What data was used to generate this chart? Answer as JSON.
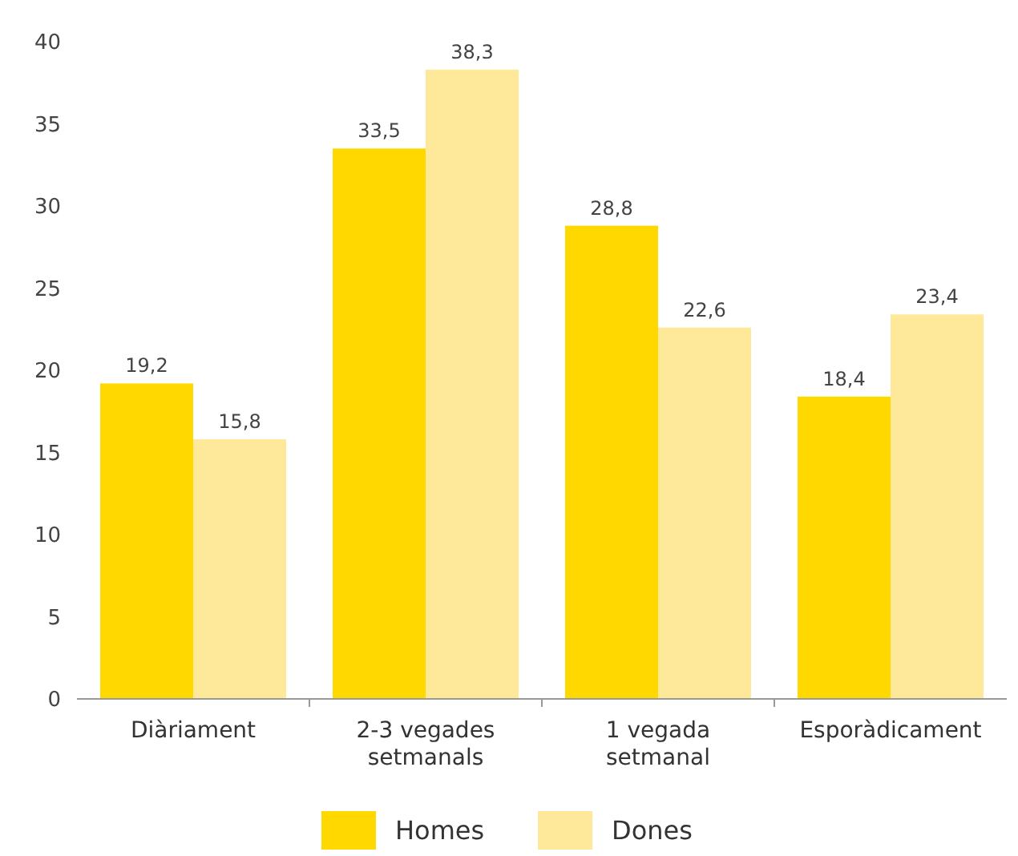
{
  "chart_data": {
    "type": "bar",
    "categories": [
      "Diàriament",
      "2-3 vegades setmanals",
      "1 vegada setmanal",
      "Esporàdicament"
    ],
    "series": [
      {
        "name": "Homes",
        "color": "#ffd800",
        "values": [
          19.2,
          33.5,
          28.8,
          18.4
        ],
        "value_labels": [
          "19,2",
          "33,5",
          "28,8",
          "18,4"
        ]
      },
      {
        "name": "Dones",
        "color": "#fde999",
        "values": [
          15.8,
          38.3,
          22.6,
          23.4
        ],
        "value_labels": [
          "15,8",
          "38,3",
          "22,6",
          "23,4"
        ]
      }
    ],
    "ylim": [
      0,
      40
    ],
    "yticks": [
      0,
      5,
      10,
      15,
      20,
      25,
      30,
      35,
      40
    ],
    "grid": false,
    "legend": "bottom"
  }
}
